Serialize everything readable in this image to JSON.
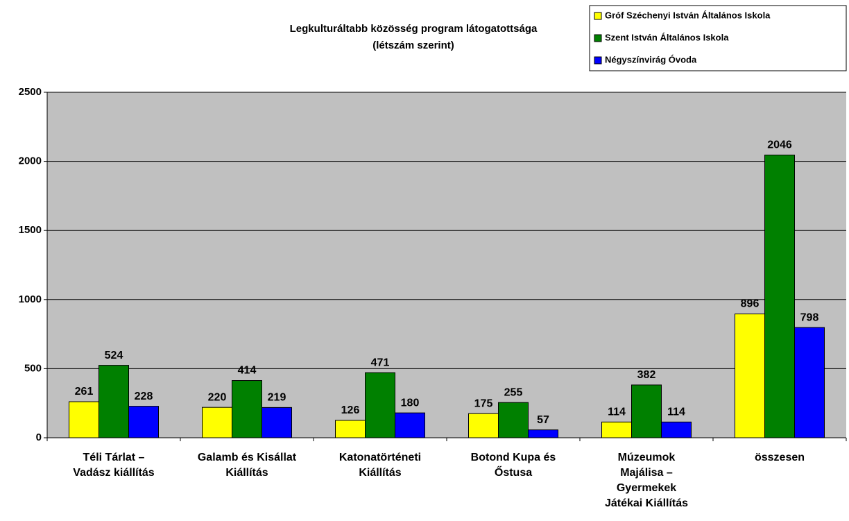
{
  "chart_data": {
    "type": "bar",
    "title": "Legkulturáltabb közösség program látogatottsága",
    "subtitle": "(létszám szerint)",
    "categories": [
      "Téli Tárlat –\nVadász kiállítás",
      "Galamb és Kisállat\nKiállítás",
      "Katonatörténeti\nKiállítás",
      "Botond Kupa és\nŐstusa",
      "Múzeumok\nMajálisa –\nGyermekek\nJátékai Kiállítás",
      "összesen"
    ],
    "series": [
      {
        "name": "Gróf Széchenyi István Általános Iskola",
        "color": "#ffff00",
        "values": [
          261,
          220,
          126,
          175,
          114,
          896
        ]
      },
      {
        "name": "Szent István Általános Iskola",
        "color": "#008000",
        "values": [
          524,
          414,
          471,
          255,
          382,
          2046
        ]
      },
      {
        "name": "Négyszínvirág Óvoda",
        "color": "#0000ff",
        "values": [
          228,
          219,
          180,
          57,
          114,
          798
        ]
      }
    ],
    "ylim": [
      0,
      2500
    ],
    "yticks": [
      0,
      500,
      1000,
      1500,
      2000,
      2500
    ],
    "grid": true,
    "legend": "top-right"
  }
}
